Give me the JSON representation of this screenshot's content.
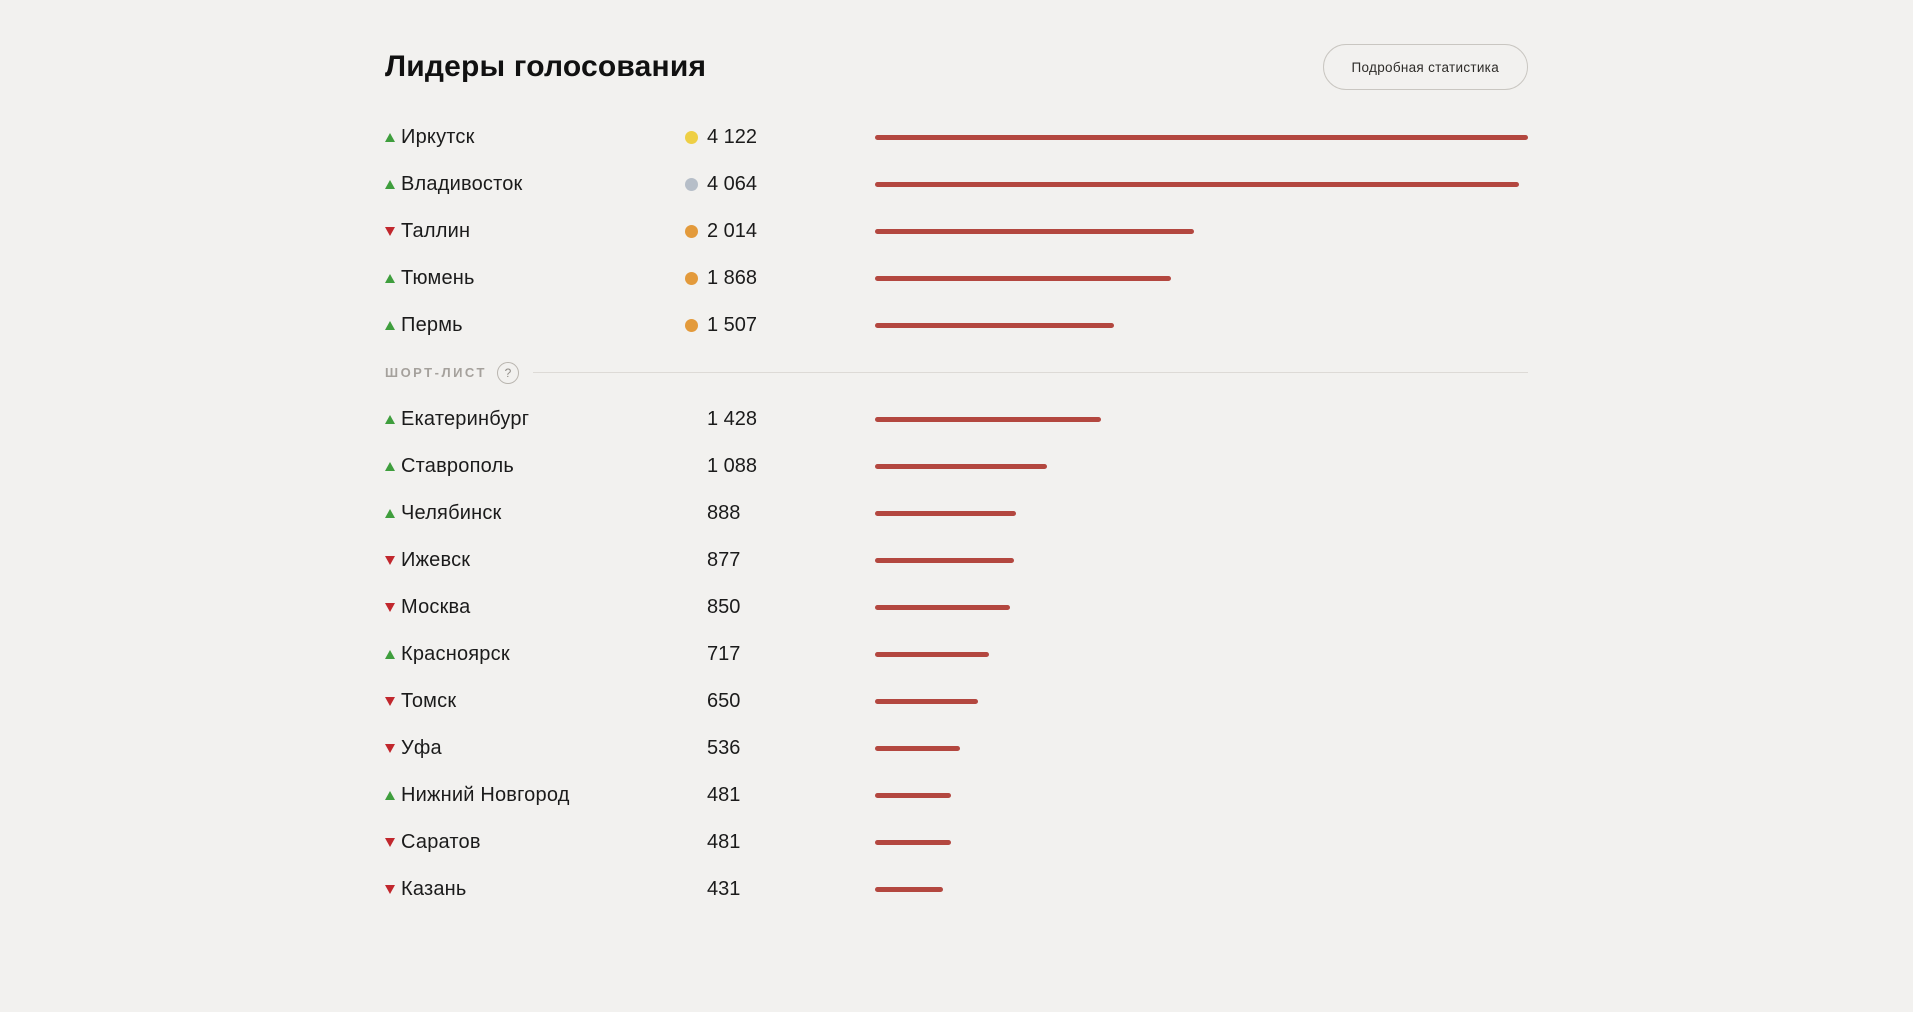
{
  "page": {
    "title": "Лидеры голосования",
    "stats_button_label": "Подробная статистика",
    "shortlist_help_icon": "?"
  },
  "colors": {
    "background": "#f2f1ef",
    "text": "#1b1b1b",
    "bar": "#b3473f",
    "trend_up": "#3f9e3d",
    "trend_down": "#c1272d",
    "medal_gold": "#eecf45",
    "medal_silver": "#b6bec8",
    "medal_orange": "#e39a3b",
    "muted": "#a5a19c",
    "divider": "#dddad6"
  },
  "chart_data": {
    "type": "bar",
    "orientation": "horizontal",
    "title": "Лидеры голосования",
    "max_value": 4122,
    "grid": false,
    "groups": [
      {
        "name": "leaders",
        "label": null,
        "rows": [
          {
            "city": "Иркутск",
            "votes": 4122,
            "votes_label": "4 122",
            "trend": "up",
            "medal": "gold"
          },
          {
            "city": "Владивосток",
            "votes": 4064,
            "votes_label": "4 064",
            "trend": "up",
            "medal": "silver"
          },
          {
            "city": "Таллин",
            "votes": 2014,
            "votes_label": "2 014",
            "trend": "down",
            "medal": "orange"
          },
          {
            "city": "Тюмень",
            "votes": 1868,
            "votes_label": "1 868",
            "trend": "up",
            "medal": "orange"
          },
          {
            "city": "Пермь",
            "votes": 1507,
            "votes_label": "1 507",
            "trend": "up",
            "medal": "orange"
          }
        ]
      },
      {
        "name": "shortlist",
        "label": "ШОРТ-ЛИСТ",
        "rows": [
          {
            "city": "Екатеринбург",
            "votes": 1428,
            "votes_label": "1 428",
            "trend": "up",
            "medal": null
          },
          {
            "city": "Ставрополь",
            "votes": 1088,
            "votes_label": "1 088",
            "trend": "up",
            "medal": null
          },
          {
            "city": "Челябинск",
            "votes": 888,
            "votes_label": "888",
            "trend": "up",
            "medal": null
          },
          {
            "city": "Ижевск",
            "votes": 877,
            "votes_label": "877",
            "trend": "down",
            "medal": null
          },
          {
            "city": "Москва",
            "votes": 850,
            "votes_label": "850",
            "trend": "down",
            "medal": null
          },
          {
            "city": "Красноярск",
            "votes": 717,
            "votes_label": "717",
            "trend": "up",
            "medal": null
          },
          {
            "city": "Томск",
            "votes": 650,
            "votes_label": "650",
            "trend": "down",
            "medal": null
          },
          {
            "city": "Уфа",
            "votes": 536,
            "votes_label": "536",
            "trend": "down",
            "medal": null
          },
          {
            "city": "Нижний Новгород",
            "votes": 481,
            "votes_label": "481",
            "trend": "up",
            "medal": null
          },
          {
            "city": "Саратов",
            "votes": 481,
            "votes_label": "481",
            "trend": "down",
            "medal": null
          },
          {
            "city": "Казань",
            "votes": 431,
            "votes_label": "431",
            "trend": "down",
            "medal": null
          }
        ]
      }
    ]
  }
}
